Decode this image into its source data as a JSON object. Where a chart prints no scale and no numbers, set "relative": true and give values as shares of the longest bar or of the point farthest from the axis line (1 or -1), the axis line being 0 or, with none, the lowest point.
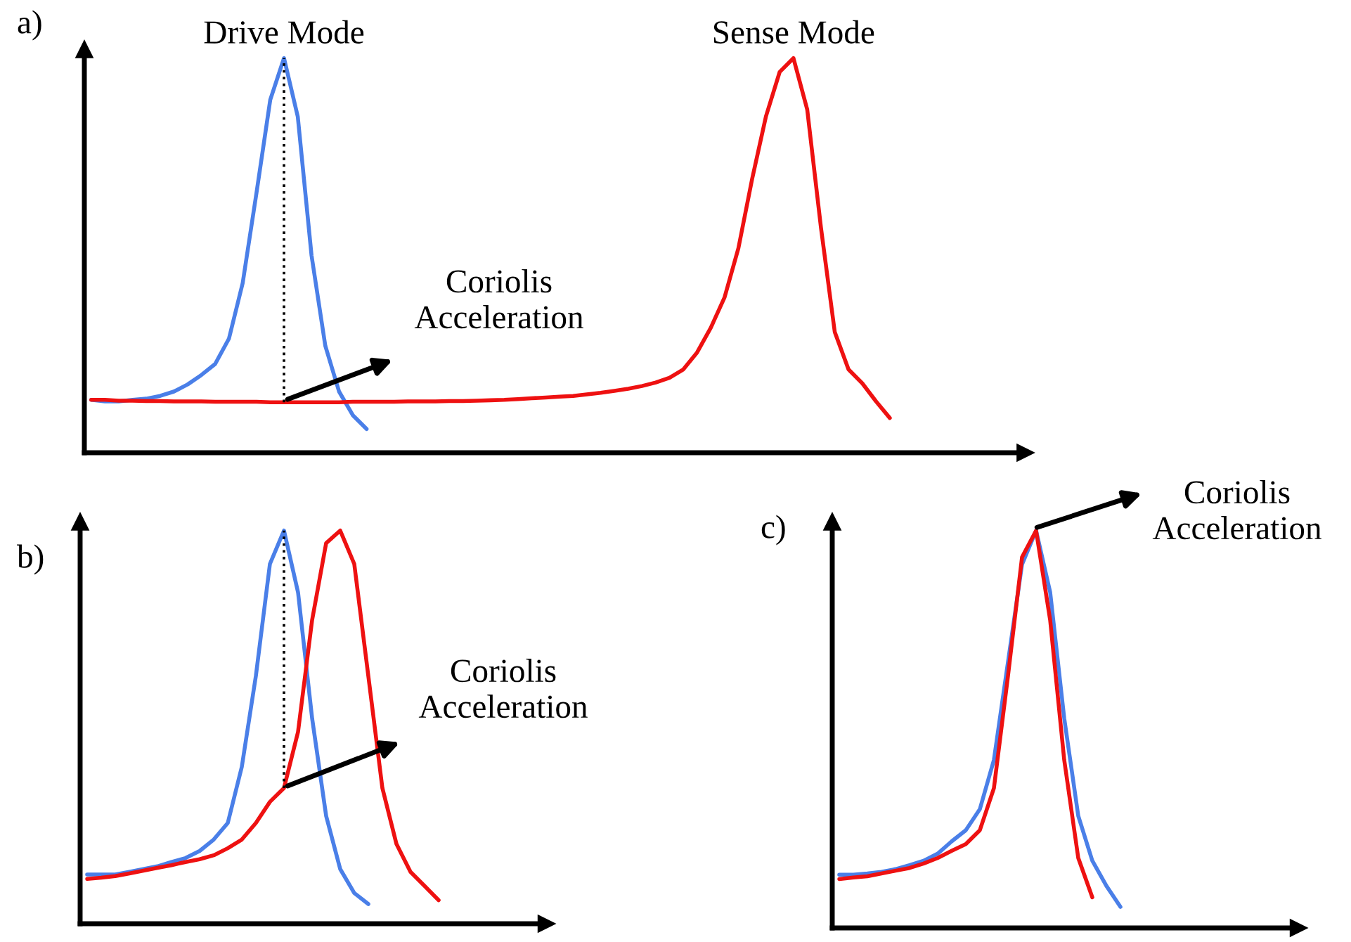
{
  "chart_data": [
    {
      "type": "line",
      "relative": true,
      "tick_labels": false,
      "legend": false,
      "title": "a)",
      "categories": [
        null,
        null,
        null,
        null,
        null,
        null,
        null,
        null,
        null,
        null,
        null,
        null,
        null,
        null,
        null,
        null,
        null,
        null,
        null,
        null,
        null,
        null,
        null,
        null,
        null,
        null,
        null,
        null,
        null,
        null,
        null,
        null,
        null,
        null,
        null,
        null,
        null,
        null,
        null,
        null,
        null,
        null,
        null,
        null,
        null,
        null,
        null,
        null,
        null,
        null,
        null,
        null,
        null,
        null,
        null,
        null,
        null,
        null,
        null,
        null,
        null,
        null,
        null,
        null,
        null,
        null,
        null,
        null
      ],
      "series": [
        {
          "name": "Drive Mode",
          "color": "#4a7fe8",
          "values": [
            0.134,
            0.13,
            0.13,
            0.134,
            0.137,
            0.144,
            0.155,
            0.173,
            0.197,
            0.225,
            0.289,
            0.43,
            0.658,
            0.894,
            1,
            0.852,
            0.5,
            0.271,
            0.155,
            0.095,
            0.06,
            null,
            null,
            null,
            null,
            null,
            null,
            null,
            null,
            null,
            null,
            null,
            null,
            null,
            null,
            null,
            null,
            null,
            null,
            null,
            null,
            null,
            null,
            null,
            null,
            null,
            null,
            null,
            null,
            null,
            null,
            null,
            null,
            null,
            null,
            null,
            null,
            null,
            null,
            null,
            null,
            null,
            null,
            null,
            null,
            null,
            null,
            null
          ]
        },
        {
          "name": "Sense Mode",
          "color": "#ee1111",
          "values": [
            0.134,
            0.134,
            0.132,
            0.132,
            0.131,
            0.131,
            0.13,
            0.13,
            0.13,
            0.129,
            0.129,
            0.129,
            0.129,
            0.128,
            0.128,
            0.128,
            0.128,
            0.128,
            0.128,
            0.129,
            0.129,
            0.129,
            0.129,
            0.13,
            0.13,
            0.13,
            0.131,
            0.131,
            0.132,
            0.133,
            0.134,
            0.136,
            0.138,
            0.14,
            0.142,
            0.144,
            0.148,
            0.152,
            0.157,
            0.162,
            0.169,
            0.178,
            0.19,
            0.211,
            0.254,
            0.317,
            0.394,
            0.518,
            0.694,
            0.852,
            0.965,
            1,
            0.87,
            0.57,
            0.306,
            0.211,
            0.176,
            0.13,
            0.088,
            null,
            null,
            null,
            null,
            null,
            null,
            null,
            null,
            null
          ]
        }
      ],
      "annotations": [
        "Coriolis\nAcceleration"
      ]
    },
    {
      "type": "line",
      "relative": true,
      "tick_labels": false,
      "legend": false,
      "title": "b)",
      "categories": [
        null,
        null,
        null,
        null,
        null,
        null,
        null,
        null,
        null,
        null,
        null,
        null,
        null,
        null,
        null,
        null,
        null,
        null,
        null,
        null,
        null,
        null,
        null,
        null,
        null,
        null,
        null,
        null,
        null,
        null,
        null,
        null,
        null
      ],
      "series": [
        {
          "color": "#4a7fe8",
          "values": [
            0.125,
            0.125,
            0.125,
            0.132,
            0.139,
            0.146,
            0.157,
            0.167,
            0.185,
            0.214,
            0.256,
            0.399,
            0.63,
            0.915,
            1,
            0.843,
            0.523,
            0.274,
            0.139,
            0.078,
            0.05,
            null,
            null,
            null,
            null,
            null,
            null,
            null,
            null,
            null,
            null,
            null,
            null
          ]
        },
        {
          "color": "#ee1111",
          "values": [
            0.114,
            0.117,
            0.121,
            0.128,
            0.135,
            0.142,
            0.149,
            0.157,
            0.164,
            0.174,
            0.192,
            0.214,
            0.256,
            0.31,
            0.345,
            0.488,
            0.772,
            0.968,
            1,
            0.915,
            0.63,
            0.345,
            0.203,
            0.132,
            0.096,
            0.06,
            null,
            null,
            null,
            null,
            null,
            null,
            null
          ]
        }
      ],
      "annotations": [
        "Coriolis\nAcceleration"
      ]
    },
    {
      "type": "line",
      "relative": true,
      "tick_labels": false,
      "legend": false,
      "title": "c)",
      "categories": [
        null,
        null,
        null,
        null,
        null,
        null,
        null,
        null,
        null,
        null,
        null,
        null,
        null,
        null,
        null,
        null,
        null,
        null,
        null,
        null,
        null,
        null,
        null,
        null,
        null,
        null,
        null,
        null,
        null,
        null,
        null,
        null,
        null
      ],
      "series": [
        {
          "color": "#4a7fe8",
          "values": [
            0.134,
            0.134,
            0.137,
            0.141,
            0.148,
            0.158,
            0.169,
            0.187,
            0.218,
            0.246,
            0.299,
            0.423,
            0.669,
            0.915,
            1,
            0.845,
            0.528,
            0.282,
            0.169,
            0.106,
            0.053,
            null,
            null,
            null,
            null,
            null,
            null,
            null,
            null,
            null,
            null,
            null,
            null
          ]
        },
        {
          "color": "#ee1111",
          "values": [
            0.123,
            0.127,
            0.13,
            0.137,
            0.144,
            0.151,
            0.162,
            0.176,
            0.194,
            0.211,
            0.246,
            0.352,
            0.634,
            0.933,
            1,
            0.775,
            0.423,
            0.176,
            0.077,
            null,
            null,
            null,
            null,
            null,
            null,
            null,
            null,
            null,
            null,
            null,
            null,
            null,
            null
          ]
        }
      ],
      "annotations": [
        "Coriolis\nAcceleration"
      ]
    }
  ]
}
